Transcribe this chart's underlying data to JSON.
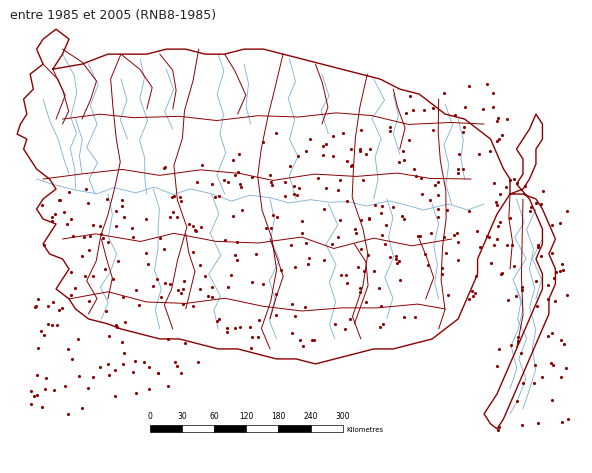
{
  "title": "entre 1985 et 2005 (RNB8-1985)",
  "title_fontsize": 9,
  "title_color": "#222222",
  "background_color": "#ffffff",
  "boundary_color": "#8B0000",
  "boundary_linewidth": 1.0,
  "sub_boundary_linewidth": 0.7,
  "river_color": "#7BAFD4",
  "river_linewidth": 0.6,
  "station_color": "#8B0000",
  "station_size": 5,
  "scale_label": "Kilometres",
  "scale_ticks": [
    0,
    30,
    60,
    120,
    180,
    240,
    300
  ]
}
